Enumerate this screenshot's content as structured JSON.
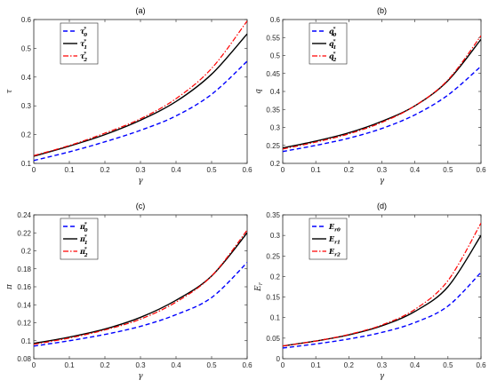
{
  "figure": {
    "colors": {
      "series0": "#0000ff",
      "series1": "#000000",
      "series2": "#ff0000"
    },
    "line_styles": [
      "dashed",
      "solid",
      "dashdot"
    ]
  },
  "chart_data": [
    {
      "type": "line",
      "panel_label": "(a)",
      "xlabel": "γ",
      "ylabel": "τ",
      "xlim": [
        0,
        0.6
      ],
      "ylim": [
        0.1,
        0.6
      ],
      "xticks": [
        "0",
        "0.1",
        "0.2",
        "0.3",
        "0.4",
        "0.5",
        "0.6"
      ],
      "yticks": [
        "0.1",
        "0.2",
        "0.3",
        "0.4",
        "0.5",
        "0.6"
      ],
      "legend_position": "top-left",
      "x": [
        0,
        0.1,
        0.2,
        0.3,
        0.4,
        0.5,
        0.6
      ],
      "series": [
        {
          "name": "τ0*",
          "base": "τ",
          "sub": "0",
          "sup": "*",
          "values": [
            0.11,
            0.14,
            0.175,
            0.215,
            0.265,
            0.34,
            0.455
          ]
        },
        {
          "name": "τ1*",
          "base": "τ",
          "sub": "1",
          "sup": "*",
          "values": [
            0.125,
            0.16,
            0.2,
            0.25,
            0.315,
            0.41,
            0.55
          ]
        },
        {
          "name": "τ2*",
          "base": "τ",
          "sub": "2",
          "sup": "*",
          "values": [
            0.127,
            0.162,
            0.205,
            0.255,
            0.325,
            0.43,
            0.595
          ]
        }
      ]
    },
    {
      "type": "line",
      "panel_label": "(b)",
      "xlabel": "γ",
      "ylabel": "q",
      "xlim": [
        0,
        0.6
      ],
      "ylim": [
        0.2,
        0.6
      ],
      "xticks": [
        "0",
        "0.1",
        "0.2",
        "0.3",
        "0.4",
        "0.5",
        "0.6"
      ],
      "yticks": [
        "0.2",
        "0.25",
        "0.3",
        "0.35",
        "0.4",
        "0.45",
        "0.5",
        "0.55",
        "0.6"
      ],
      "legend_position": "top-left",
      "x": [
        0,
        0.1,
        0.2,
        0.3,
        0.4,
        0.5,
        0.6
      ],
      "series": [
        {
          "name": "q0*",
          "base": "q",
          "sub": "0",
          "sup": "*",
          "values": [
            0.233,
            0.25,
            0.27,
            0.297,
            0.335,
            0.39,
            0.47
          ]
        },
        {
          "name": "q1*",
          "base": "q",
          "sub": "1",
          "sup": "*",
          "values": [
            0.243,
            0.262,
            0.285,
            0.317,
            0.36,
            0.43,
            0.545
          ]
        },
        {
          "name": "q2*",
          "base": "q",
          "sub": "2",
          "sup": "*",
          "values": [
            0.24,
            0.259,
            0.282,
            0.314,
            0.36,
            0.432,
            0.555
          ]
        }
      ]
    },
    {
      "type": "line",
      "panel_label": "(c)",
      "xlabel": "γ",
      "ylabel": "π",
      "xlim": [
        0,
        0.6
      ],
      "ylim": [
        0.08,
        0.24
      ],
      "xticks": [
        "0",
        "0.1",
        "0.2",
        "0.3",
        "0.4",
        "0.5",
        "0.6"
      ],
      "yticks": [
        "0.08",
        "0.1",
        "0.12",
        "0.14",
        "0.16",
        "0.18",
        "0.2",
        "0.22",
        "0.24"
      ],
      "legend_position": "top-left",
      "x": [
        0,
        0.1,
        0.2,
        0.3,
        0.4,
        0.5,
        0.6
      ],
      "series": [
        {
          "name": "π0*",
          "base": "π",
          "sub": "0",
          "sup": "*",
          "values": [
            0.094,
            0.1,
            0.107,
            0.116,
            0.129,
            0.148,
            0.187
          ]
        },
        {
          "name": "π1*",
          "base": "π",
          "sub": "1",
          "sup": "*",
          "values": [
            0.097,
            0.104,
            0.113,
            0.126,
            0.145,
            0.172,
            0.22
          ]
        },
        {
          "name": "π2*",
          "base": "π",
          "sub": "2",
          "sup": "*",
          "values": [
            0.096,
            0.103,
            0.112,
            0.124,
            0.143,
            0.172,
            0.223
          ]
        }
      ]
    },
    {
      "type": "line",
      "panel_label": "(d)",
      "xlabel": "γ",
      "ylabel": "Er",
      "xlim": [
        0,
        0.6
      ],
      "ylim": [
        0,
        0.35
      ],
      "xticks": [
        "0",
        "0.1",
        "0.2",
        "0.3",
        "0.4",
        "0.5",
        "0.6"
      ],
      "yticks": [
        "0",
        "0.05",
        "0.1",
        "0.15",
        "0.2",
        "0.25",
        "0.3",
        "0.35"
      ],
      "legend_position": "top-left",
      "x": [
        0,
        0.1,
        0.2,
        0.3,
        0.4,
        0.5,
        0.6
      ],
      "series": [
        {
          "name": "Er0",
          "base": "E",
          "sub": "r0",
          "sup": "",
          "values": [
            0.026,
            0.036,
            0.048,
            0.064,
            0.088,
            0.128,
            0.21
          ]
        },
        {
          "name": "Er1",
          "base": "E",
          "sub": "r1",
          "sup": "",
          "values": [
            0.031,
            0.043,
            0.058,
            0.08,
            0.115,
            0.175,
            0.3
          ]
        },
        {
          "name": "Er2",
          "base": "E",
          "sub": "r2",
          "sup": "",
          "values": [
            0.031,
            0.043,
            0.059,
            0.082,
            0.12,
            0.19,
            0.33
          ]
        }
      ]
    }
  ]
}
